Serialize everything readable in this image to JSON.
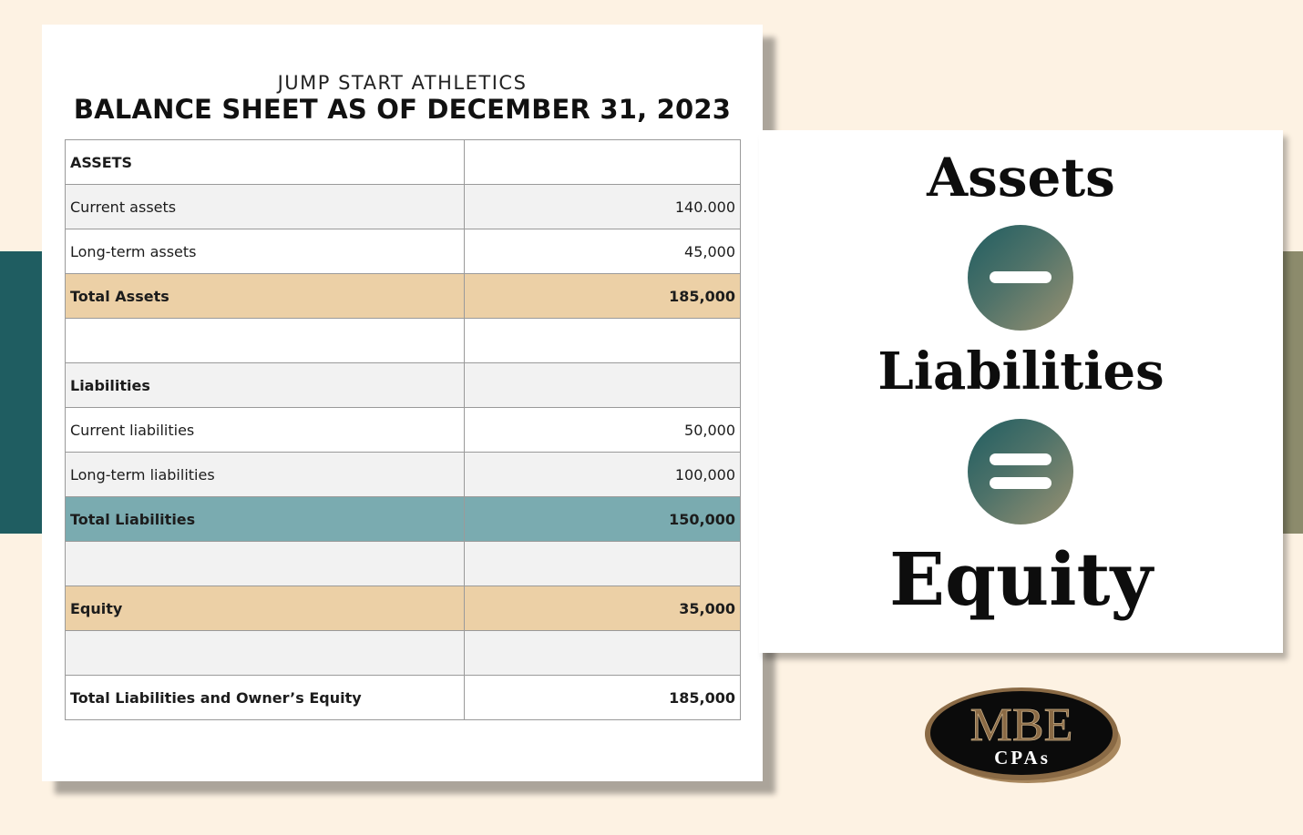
{
  "document": {
    "company": "JUMP START ATHLETICS",
    "title": "BALANCE SHEET AS OF DECEMBER 31, 2023",
    "rows": [
      {
        "label": "ASSETS",
        "amount": ""
      },
      {
        "label": "Current assets",
        "amount": "140.000"
      },
      {
        "label": "Long-term assets",
        "amount": "45,000"
      },
      {
        "label": "Total Assets",
        "amount": "185,000"
      },
      {
        "label": "",
        "amount": ""
      },
      {
        "label": "Liabilities",
        "amount": ""
      },
      {
        "label": "Current liabilities",
        "amount": "50,000"
      },
      {
        "label": "Long-term liabilities",
        "amount": "100,000"
      },
      {
        "label": "Total Liabilities",
        "amount": "150,000"
      },
      {
        "label": "",
        "amount": ""
      },
      {
        "label": "Equity",
        "amount": "35,000"
      },
      {
        "label": "",
        "amount": ""
      },
      {
        "label": "Total Liabilities and Owner’s Equity",
        "amount": "185,000"
      }
    ]
  },
  "formula": {
    "term1": "Assets",
    "operator1": "minus-icon",
    "term2": "Liabilities",
    "operator2": "equals-icon",
    "result": "Equity"
  },
  "logo": {
    "main": "MBE",
    "sub": "CPAs"
  },
  "colors": {
    "background": "#fdf2e3",
    "teal_dark": "#1f5d61",
    "olive": "#8c8b6c",
    "tan_highlight": "#ecd0a6",
    "teal_highlight": "#7aabb0",
    "row_gray": "#f2f2f2",
    "logo_gold": "#8a6a45"
  }
}
